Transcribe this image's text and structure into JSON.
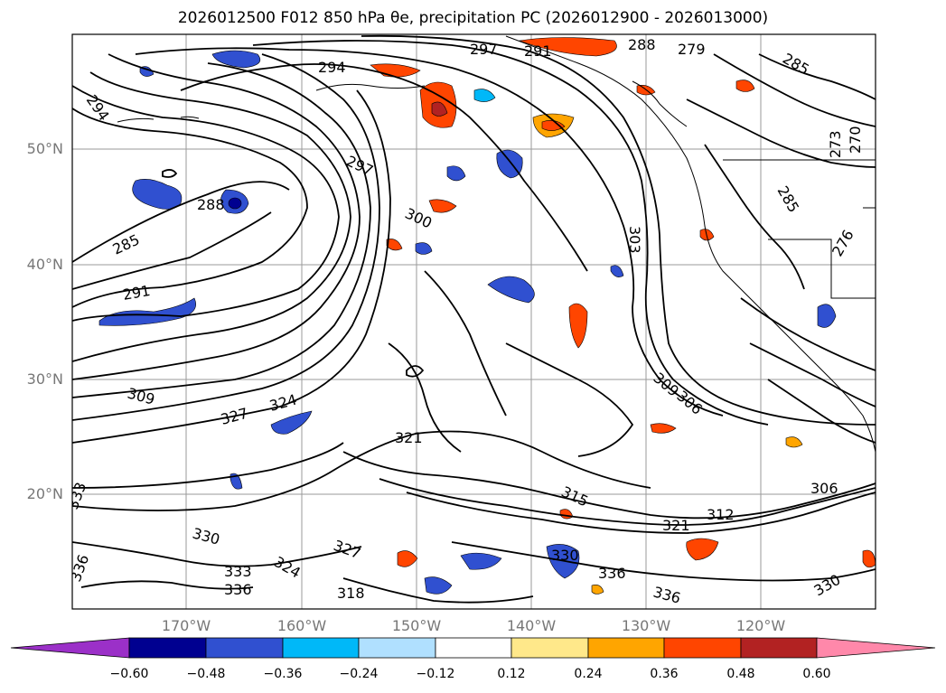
{
  "title": "2026012500 F012 850 hPa θe, precipitation PC (2026012900 - 2026013000)",
  "map": {
    "projection": "PlateCarree",
    "lon_range_deg": [
      -180,
      -110
    ],
    "lat_range_deg": [
      10,
      60
    ],
    "lat_ticks": [
      "50°N",
      "40°N",
      "30°N",
      "20°N"
    ],
    "lon_ticks": [
      "170°W",
      "160°W",
      "150°W",
      "140°W",
      "130°W",
      "120°W"
    ],
    "contour_labels": [
      "294",
      "297",
      "291",
      "288",
      "279",
      "285",
      "294",
      "297",
      "300",
      "303",
      "288",
      "285",
      "291",
      "309",
      "327",
      "324",
      "321",
      "315",
      "309",
      "306",
      "306",
      "312",
      "321",
      "330",
      "336",
      "336",
      "330",
      "333",
      "336",
      "336",
      "327",
      "318",
      "324",
      "333",
      "330",
      "273",
      "270",
      "285",
      "276"
    ]
  },
  "colorbar": {
    "tick_labels": [
      "−0.60",
      "−0.48",
      "−0.36",
      "−0.24",
      "−0.12",
      "0.12",
      "0.24",
      "0.36",
      "0.48",
      "0.60"
    ],
    "colors": [
      "#9b30c8",
      "#000090",
      "#3050d0",
      "#00b8f8",
      "#b0e0ff",
      "#ffffff",
      "#ffe88a",
      "#ffa500",
      "#ff4500",
      "#b22222",
      "#ff88aa"
    ]
  }
}
